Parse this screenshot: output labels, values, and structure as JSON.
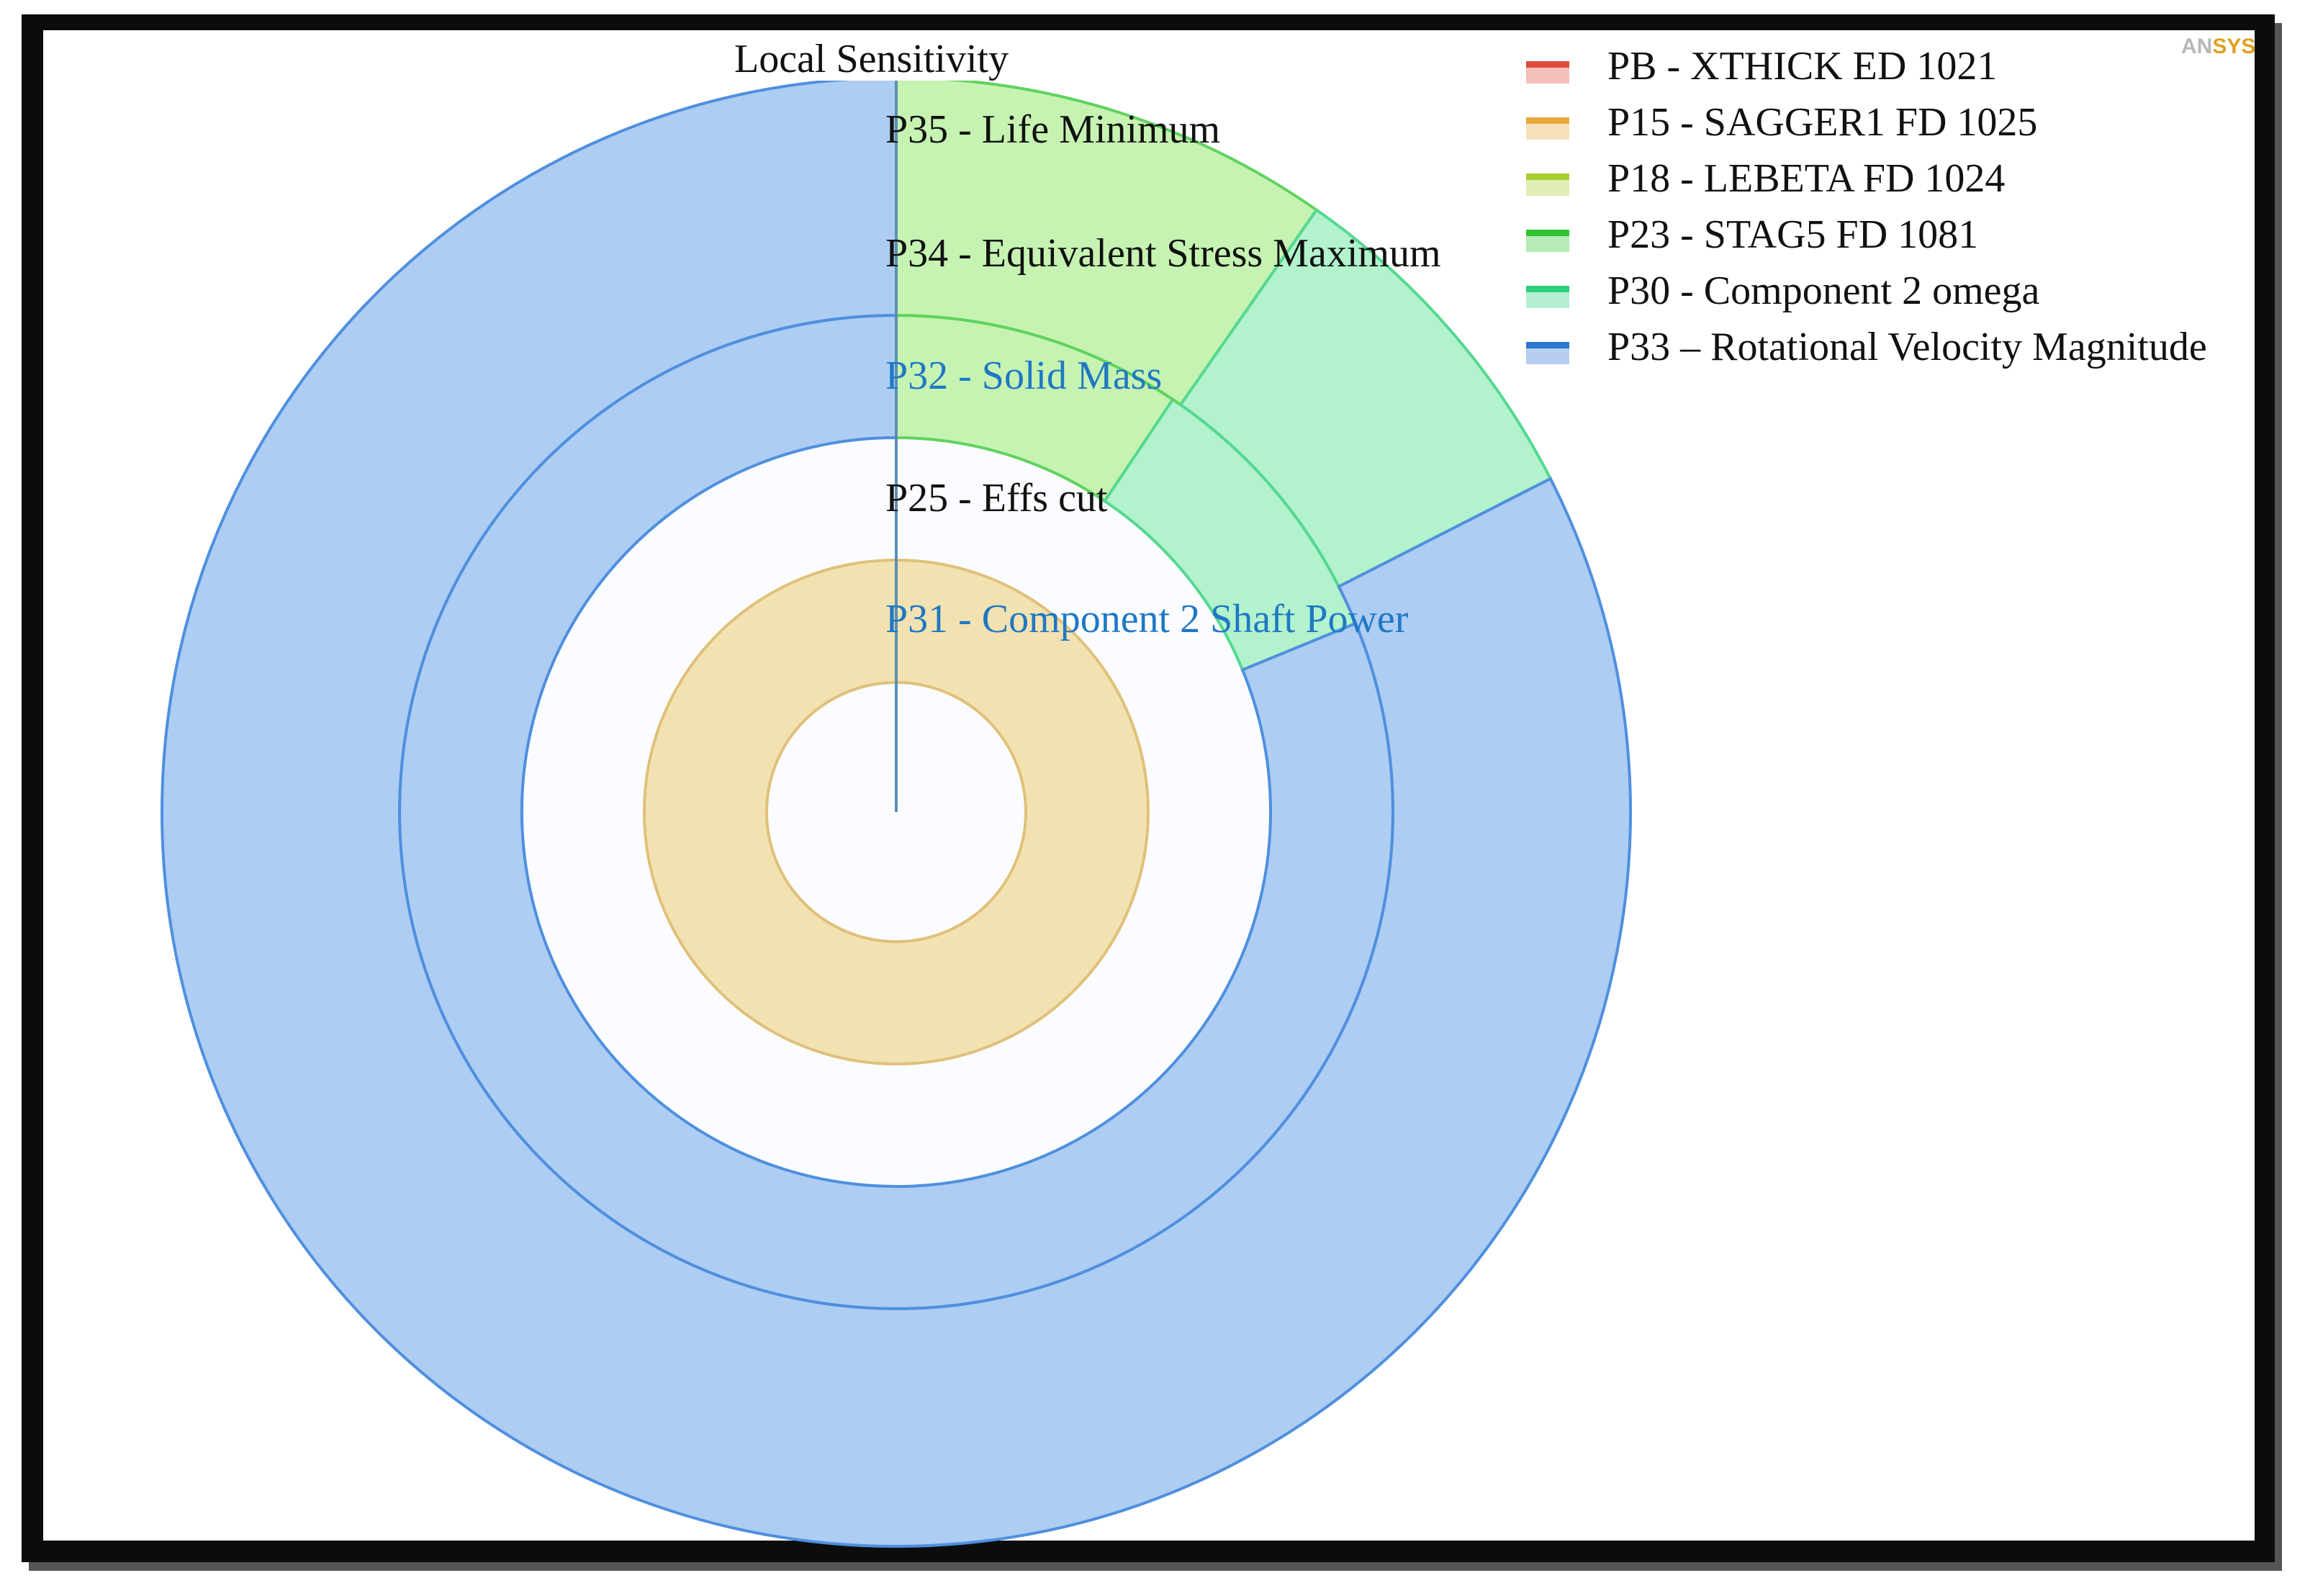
{
  "logo": "ANSYS",
  "chart_data": {
    "type": "sunburst",
    "title": "Local Sensitivity",
    "legend_position": "top-right",
    "legend": [
      {
        "name": "PB - XTHICK ED 1021",
        "color": "#e04a3a"
      },
      {
        "name": "P15 - SAGGER1 FD 1025",
        "color": "#e6a93a"
      },
      {
        "name": "P18 - LEBETA FD 1024",
        "color": "#a6cf2e"
      },
      {
        "name": "P23 - STAG5 FD 1081",
        "color": "#2ec42e"
      },
      {
        "name": "P30 - Component 2 omega",
        "color": "#2ecf7a"
      },
      {
        "name": "P33 – Rotational Velocity Magnitude",
        "color": "#2f74d0"
      }
    ],
    "rings": [
      {
        "label": "P31 - Component 2 Shaft Power",
        "label_style": "blue",
        "segments": []
      },
      {
        "label": "P25 - Effs cut",
        "label_style": "dark",
        "segments": [
          {
            "parameter": "P15 - SAGGER1 FD 1025",
            "share": 1.0
          }
        ]
      },
      {
        "label": "P32 - Solid Mass",
        "label_style": "blue",
        "segments": []
      },
      {
        "label": "P34 - Equivalent Stress Maximum",
        "label_style": "dark",
        "segments": [
          {
            "parameter": "P23 - STAG5 FD 1081",
            "share": 0.094
          },
          {
            "parameter": "P30 - Component 2 omega",
            "share": 0.094
          },
          {
            "parameter": "P33 – Rotational Velocity Magnitude",
            "share": 0.812
          }
        ]
      },
      {
        "label": "P35 - Life Minimum",
        "label_style": "dark",
        "segments": [
          {
            "parameter": "P23 - STAG5 FD 1081",
            "share": 0.097
          },
          {
            "parameter": "P30 - Component 2 omega",
            "share": 0.078
          },
          {
            "parameter": "P33 – Rotational Velocity Magnitude",
            "share": 0.825
          }
        ]
      }
    ]
  }
}
